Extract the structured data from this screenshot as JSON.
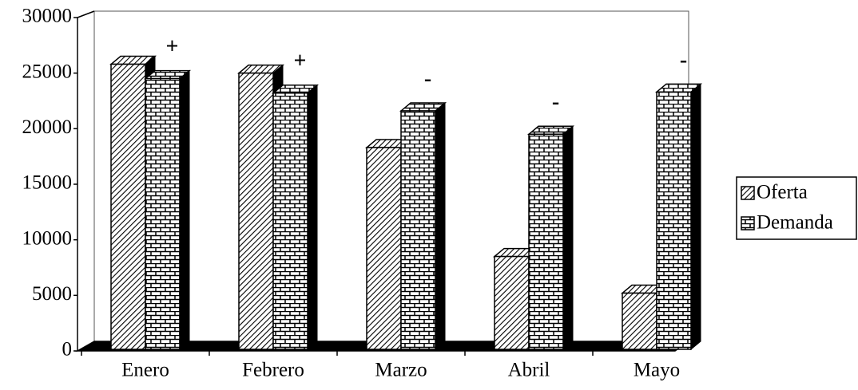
{
  "chart_data": {
    "type": "bar3d",
    "categories": [
      "Enero",
      "Febrero",
      "Marzo",
      "Abril",
      "Mayo"
    ],
    "series": [
      {
        "name": "Oferta",
        "values": [
          25800,
          25000,
          18300,
          8500,
          5200
        ]
      },
      {
        "name": "Demanda",
        "values": [
          24500,
          23200,
          21600,
          19500,
          23300
        ]
      }
    ],
    "annotations": [
      "+",
      "+",
      "-",
      "-",
      "-"
    ],
    "ylim": [
      0,
      30000
    ],
    "yticks": [
      0,
      5000,
      10000,
      15000,
      20000,
      25000,
      30000
    ]
  }
}
